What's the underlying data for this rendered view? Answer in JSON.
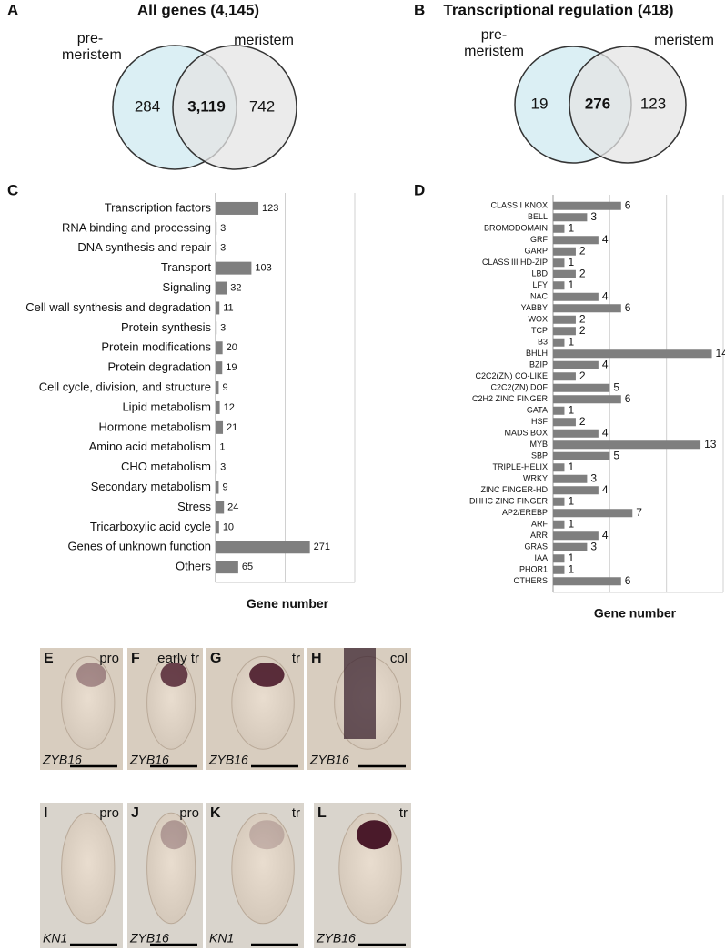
{
  "chart_data": [
    {
      "type": "venn",
      "panel_label": "A",
      "title": "All genes (4,145)",
      "sets": [
        {
          "name": "pre-meristem",
          "color": "#cfe9f0"
        },
        {
          "name": "meristem",
          "color": "#e4e4e4"
        }
      ],
      "values": [
        284,
        3119,
        742
      ],
      "value_labels": [
        "284",
        "3,119",
        "742"
      ]
    },
    {
      "type": "venn",
      "panel_label": "B",
      "title": "Transcriptional regulation (418)",
      "sets": [
        {
          "name": "pre-meristem",
          "color": "#cfe9f0"
        },
        {
          "name": "meristem",
          "color": "#e4e4e4"
        }
      ],
      "values": [
        19,
        276,
        123
      ]
    },
    {
      "type": "hbar",
      "panel_label": "C",
      "x_label": "Gene number",
      "color": "#7f7f7f",
      "grid": true,
      "xlim": [
        0,
        400
      ],
      "xticks": [
        0,
        200,
        400
      ],
      "categories": [
        "Transcription factors",
        "RNA binding and processing",
        "DNA synthesis and repair",
        "Transport",
        "Signaling",
        "Cell wall synthesis and degradation",
        "Protein synthesis",
        "Protein modifications",
        "Protein degradation",
        "Cell cycle, division, and structure",
        "Lipid metabolism",
        "Hormone metabolism",
        "Amino acid metabolism",
        "CHO metabolism",
        "Secondary metabolism",
        "Stress",
        "Tricarboxylic acid cycle",
        "Genes of unknown function",
        "Others"
      ],
      "values": [
        123,
        3,
        3,
        103,
        32,
        11,
        3,
        20,
        19,
        9,
        12,
        21,
        1,
        3,
        9,
        24,
        10,
        271,
        65
      ]
    },
    {
      "type": "hbar",
      "panel_label": "D",
      "x_label": "Gene number",
      "color": "#7f7f7f",
      "grid": true,
      "xlim": [
        0,
        15
      ],
      "xticks": [
        0,
        5,
        10,
        15
      ],
      "categories": [
        "CLASS I KNOX",
        "BELL",
        "BROMODOMAIN",
        "GRF",
        "GARP",
        "CLASS III HD-ZIP",
        "LBD",
        "LFY",
        "NAC",
        "YABBY",
        "WOX",
        "TCP",
        "B3",
        "BHLH",
        "BZIP",
        "C2C2(ZN) CO-LIKE",
        "C2C2(ZN) DOF",
        "C2H2 ZINC FINGER",
        "GATA",
        "HSF",
        "MADS BOX",
        "MYB",
        "SBP",
        "TRIPLE-HELIX",
        "WRKY",
        "ZINC FINGER-HD",
        "DHHC ZINC FINGER",
        "AP2/EREBP",
        "ARF",
        "ARR",
        "GRAS",
        "IAA",
        "PHOR1",
        "OTHERS"
      ],
      "values": [
        6,
        3,
        1,
        4,
        2,
        1,
        2,
        1,
        4,
        6,
        2,
        2,
        1,
        14,
        4,
        2,
        5,
        6,
        1,
        2,
        4,
        13,
        5,
        1,
        3,
        4,
        1,
        7,
        1,
        4,
        3,
        1,
        1,
        6
      ]
    }
  ],
  "micrographs": [
    {
      "panel": "E",
      "stage": "pro",
      "gene": "ZYB16"
    },
    {
      "panel": "F",
      "stage": "early tr",
      "gene": "ZYB16"
    },
    {
      "panel": "G",
      "stage": "tr",
      "gene": "ZYB16"
    },
    {
      "panel": "H",
      "stage": "col",
      "gene": "ZYB16"
    },
    {
      "panel": "I",
      "stage": "pro",
      "gene": "KN1"
    },
    {
      "panel": "J",
      "stage": "pro",
      "gene": "ZYB16"
    },
    {
      "panel": "K",
      "stage": "tr",
      "gene": "KN1"
    },
    {
      "panel": "L",
      "stage": "tr",
      "gene": "ZYB16"
    }
  ]
}
